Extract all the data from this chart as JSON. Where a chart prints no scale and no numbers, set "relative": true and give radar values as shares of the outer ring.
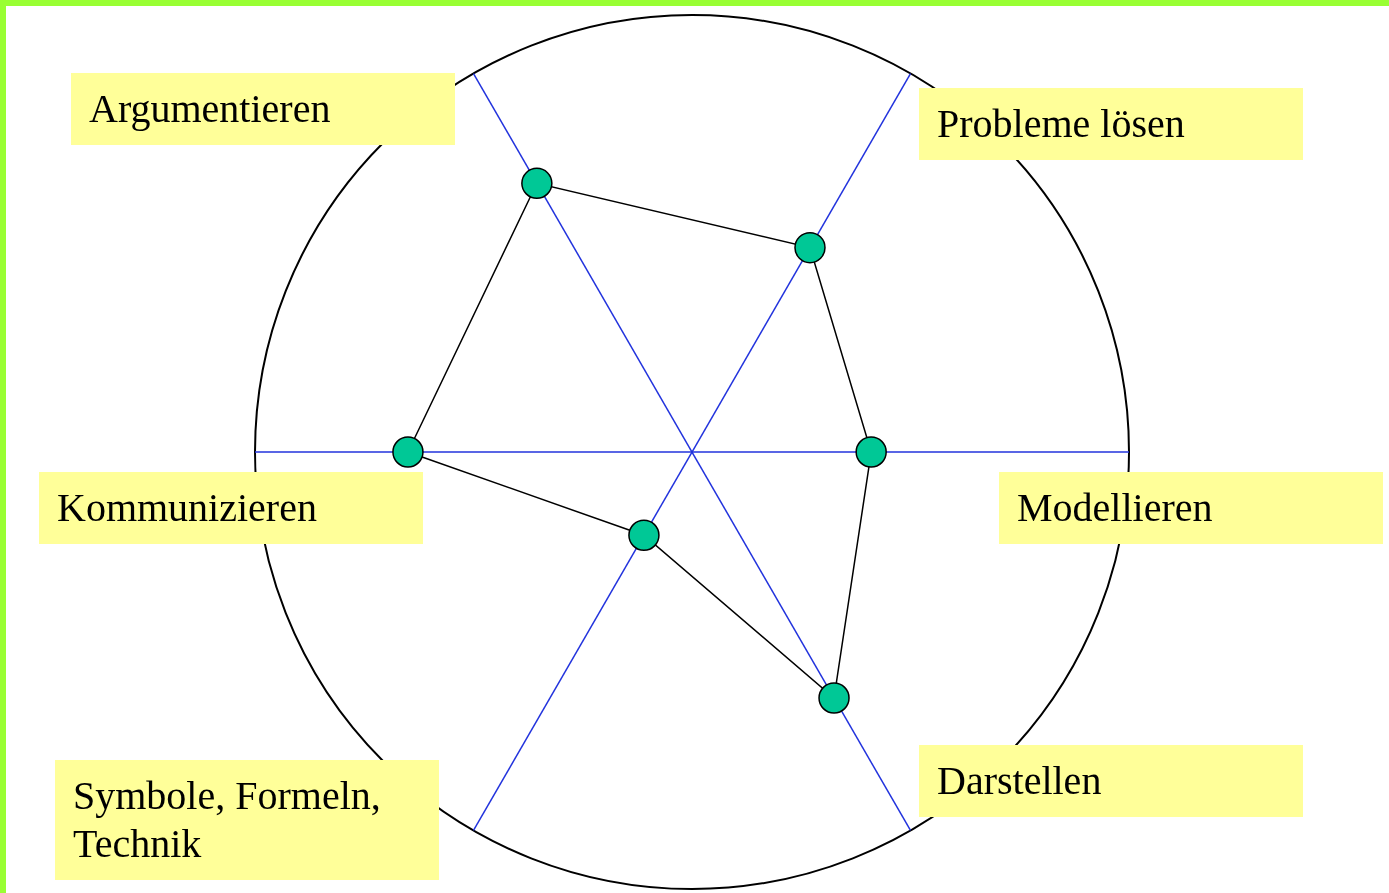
{
  "chart_data": {
    "type": "radar",
    "relative": true,
    "marker": "circle",
    "categories": [
      "Probleme lösen",
      "Modellieren",
      "Darstellen",
      "Symbole, Formeln, Technik",
      "Kommunizieren",
      "Argumentieren"
    ],
    "series": [
      {
        "color": "#000000",
        "colors": [
          "#00c896",
          "#00c896",
          "#00c896",
          "#00c896",
          "#00c896",
          "#00c896"
        ],
        "values": [
          0.54,
          0.41,
          0.65,
          0.22,
          0.65,
          0.71
        ]
      }
    ]
  }
}
